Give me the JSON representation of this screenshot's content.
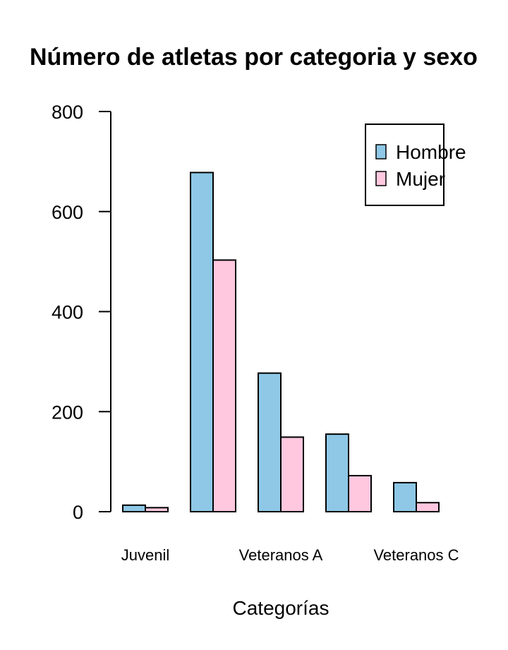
{
  "chart_data": {
    "type": "bar",
    "title": "Número de atletas por categoria y sexo",
    "xlabel": "Categorías",
    "ylabel": "",
    "ylim": [
      0,
      800
    ],
    "yticks": [
      0,
      200,
      400,
      600,
      800
    ],
    "categories": [
      "Juvenil",
      "",
      "Veteranos A",
      "",
      "Veteranos C"
    ],
    "series": [
      {
        "name": "Hombre",
        "color": "#8ec8e6",
        "values": [
          13,
          678,
          277,
          155,
          58
        ]
      },
      {
        "name": "Mujer",
        "color": "#ffc8df",
        "values": [
          8,
          503,
          149,
          72,
          18
        ]
      }
    ],
    "legend_position": "top-right",
    "grid": false
  }
}
